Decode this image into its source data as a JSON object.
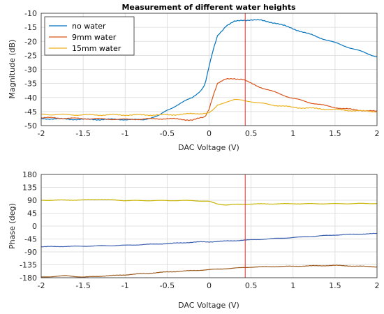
{
  "colors": {
    "no_water": "#0072BD",
    "mm9": "#D95319",
    "mm15": "#EDB120",
    "phase_top": "#C8B400",
    "phase_mid": "#3A5FB0",
    "phase_bot": "#9C5A1E",
    "marker": "#E03030",
    "grid": "#D9D9D9"
  },
  "chart_data": [
    {
      "type": "line",
      "title": "Measurement of different water heights",
      "xlabel": "DAC Voltage (V)",
      "ylabel": "Magnitude (dB)",
      "xlim": [
        -2,
        2
      ],
      "ylim": [
        -50,
        -10
      ],
      "xticks": [
        "-2",
        "-1.5",
        "-1",
        "-0.5",
        "0",
        "0.5",
        "1",
        "1.5",
        "2"
      ],
      "yticks": [
        "-10",
        "-15",
        "-20",
        "-25",
        "-30",
        "-35",
        "-40",
        "-45",
        "-50"
      ],
      "grid": true,
      "legend": "top-left",
      "marker_x": 0.43,
      "series": [
        {
          "name": "no water",
          "x": [
            -2,
            -1.5,
            -1,
            -0.8,
            -0.6,
            -0.5,
            -0.4,
            -0.3,
            -0.2,
            -0.1,
            -0.05,
            0,
            0.05,
            0.1,
            0.2,
            0.3,
            0.4,
            0.5,
            0.6,
            0.8,
            1.0,
            1.2,
            1.4,
            1.6,
            1.8,
            2.0
          ],
          "y": [
            -47.5,
            -47.8,
            -47.8,
            -48,
            -46.5,
            -44.5,
            -43,
            -41.5,
            -40,
            -37.5,
            -35.5,
            -29,
            -23,
            -18,
            -14.5,
            -13,
            -12.5,
            -12.3,
            -12.5,
            -13.5,
            -15.5,
            -17.5,
            -19.5,
            -21.5,
            -23.5,
            -25.5
          ]
        },
        {
          "name": "9mm water",
          "x": [
            -2,
            -1.5,
            -1,
            -0.5,
            -0.2,
            -0.05,
            0,
            0.05,
            0.1,
            0.2,
            0.3,
            0.4,
            0.5,
            0.6,
            0.8,
            1.0,
            1.2,
            1.4,
            1.6,
            1.8,
            2.0
          ],
          "y": [
            -47.2,
            -47.5,
            -47.8,
            -47.5,
            -48,
            -47,
            -44,
            -39,
            -35,
            -33.5,
            -33.2,
            -33.5,
            -35,
            -36.2,
            -38.3,
            -40.3,
            -41.8,
            -43,
            -44,
            -44.5,
            -45
          ]
        },
        {
          "name": "15mm water",
          "x": [
            -2,
            -1.5,
            -1,
            -0.5,
            -0.2,
            0,
            0.05,
            0.1,
            0.2,
            0.3,
            0.4,
            0.5,
            0.6,
            0.8,
            1.0,
            1.2,
            1.5,
            1.8,
            2.0
          ],
          "y": [
            -46,
            -46.2,
            -46.2,
            -46.2,
            -45.8,
            -45.5,
            -44.5,
            -42.8,
            -41.5,
            -40.8,
            -41,
            -41.4,
            -42,
            -42.8,
            -43.5,
            -43.8,
            -44.3,
            -44.8,
            -45
          ]
        }
      ]
    },
    {
      "type": "line",
      "xlabel": "DAC Voltage (V)",
      "ylabel": "Phase (deg)",
      "xlim": [
        -2,
        2
      ],
      "ylim": [
        -180,
        180
      ],
      "xticks": [
        "-2",
        "-1.5",
        "-1",
        "-0.5",
        "0",
        "0.5",
        "1",
        "1.5",
        "2"
      ],
      "yticks": [
        "180",
        "135",
        "90",
        "45",
        "0",
        "-45",
        "-90",
        "-135",
        "-180"
      ],
      "grid": true,
      "marker_x": 0.43,
      "series": [
        {
          "x": [
            -2,
            -1.5,
            -1.3,
            -1,
            -0.5,
            -0.2,
            0,
            0.1,
            0.2,
            0.5,
            1.0,
            1.5,
            2.0
          ],
          "y": [
            90,
            91,
            93,
            89,
            89,
            89,
            86,
            77,
            74,
            77,
            78,
            78,
            79
          ]
        },
        {
          "x": [
            -2,
            -1.5,
            -1,
            -0.5,
            -0.1,
            0,
            0.5,
            1.0,
            1.5,
            1.8,
            2.0
          ],
          "y": [
            -72,
            -70,
            -67,
            -61,
            -55,
            -55,
            -48,
            -40,
            -31,
            -28,
            -26
          ]
        },
        {
          "x": [
            -2,
            -1.7,
            -1.5,
            -1,
            -0.5,
            0,
            0.5,
            1.0,
            1.5,
            1.8,
            2.0
          ],
          "y": [
            -178,
            -173,
            -178,
            -170,
            -160,
            -152,
            -143,
            -140,
            -137,
            -140,
            -142
          ]
        }
      ]
    }
  ]
}
